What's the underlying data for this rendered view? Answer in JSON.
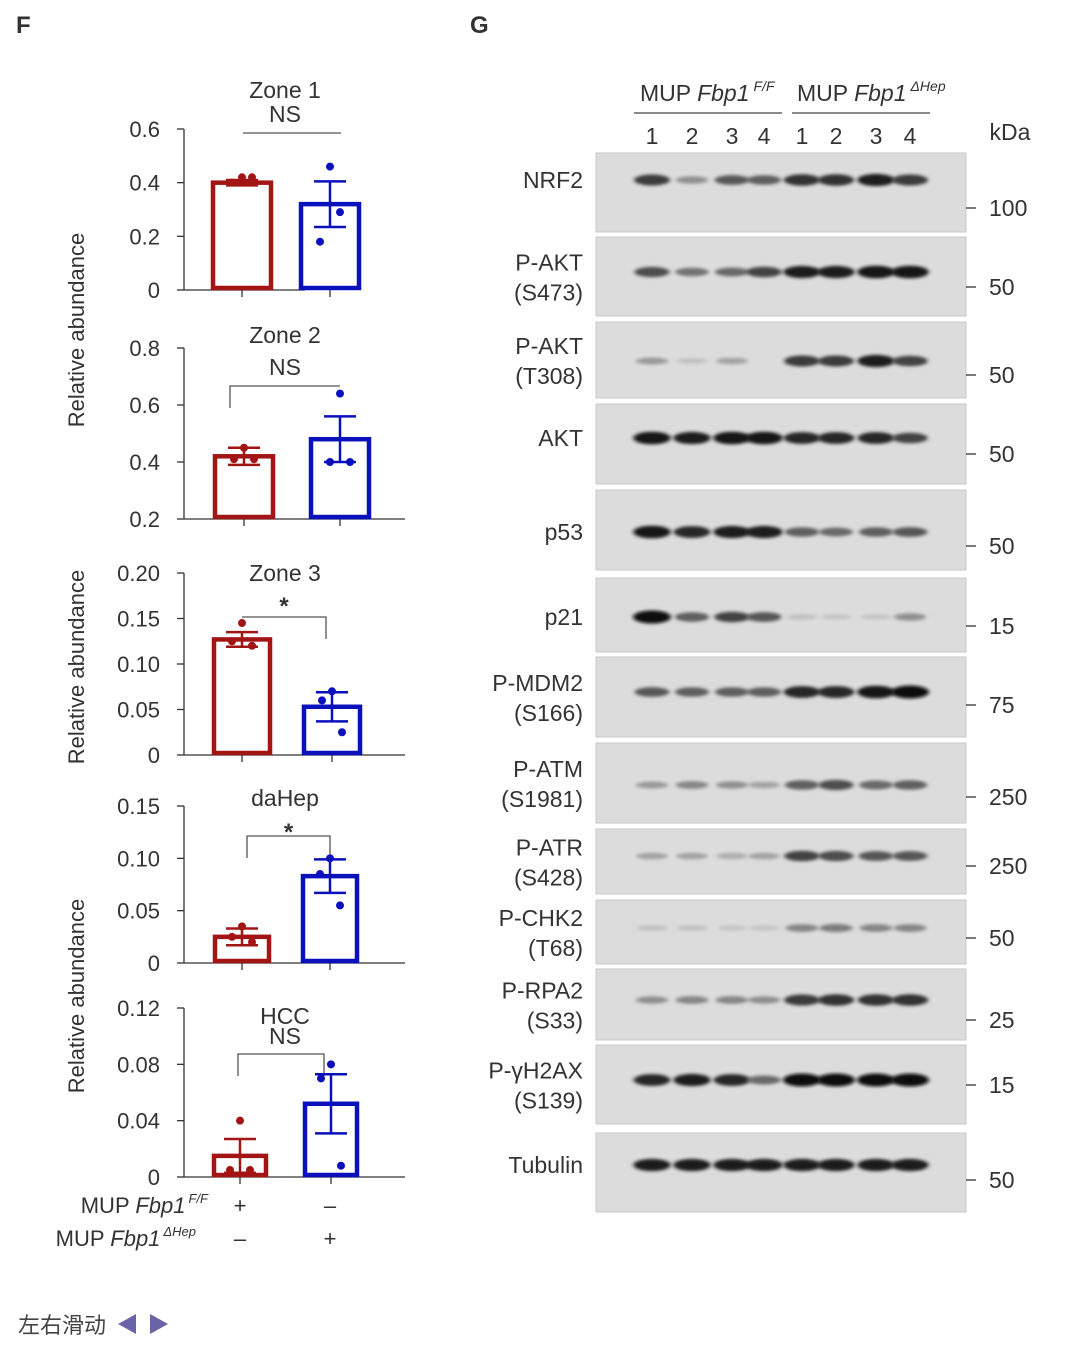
{
  "panel_f_label": "F",
  "panel_g_label": "G",
  "chart_data": [
    {
      "type": "bar",
      "title": "Zone 1",
      "significance": "NS",
      "ylabel": "Relative abundance",
      "ylim": [
        0,
        0.6
      ],
      "yticks": [
        "0",
        "0.2",
        "0.4",
        "0.6"
      ],
      "categories": [
        "MUP Fbp1 F/F",
        "MUP Fbp1 ΔHep"
      ],
      "values": [
        0.4,
        0.32
      ],
      "errors": [
        0.01,
        0.085
      ],
      "points": [
        [
          0.42,
          0.4,
          0.42
        ],
        [
          0.46,
          0.18,
          0.29
        ]
      ],
      "colors": [
        "#a31515",
        "#0b10bd"
      ]
    },
    {
      "type": "bar",
      "title": "Zone 2",
      "significance": "NS",
      "ylabel": "",
      "ylim": [
        0.2,
        0.8
      ],
      "yticks": [
        "0.2",
        "0.4",
        "0.6",
        "0.8"
      ],
      "categories": [
        "MUP Fbp1 F/F",
        "MUP Fbp1 ΔHep"
      ],
      "values": [
        0.42,
        0.48
      ],
      "errors": [
        0.03,
        0.08
      ],
      "points": [
        [
          0.45,
          0.41,
          0.41
        ],
        [
          0.64,
          0.4,
          0.4
        ]
      ],
      "colors": [
        "#a31515",
        "#0b10bd"
      ]
    },
    {
      "type": "bar",
      "title": "Zone 3",
      "significance": "*",
      "ylabel": "Relative abundance",
      "ylim": [
        0,
        0.2
      ],
      "yticks": [
        "0",
        "0.05",
        "0.10",
        "0.15",
        "0.20"
      ],
      "categories": [
        "MUP Fbp1 F/F",
        "MUP Fbp1 ΔHep"
      ],
      "values": [
        0.127,
        0.053
      ],
      "errors": [
        0.008,
        0.016
      ],
      "points": [
        [
          0.145,
          0.125,
          0.12
        ],
        [
          0.07,
          0.06,
          0.025
        ]
      ],
      "colors": [
        "#a31515",
        "#0b10bd"
      ]
    },
    {
      "type": "bar",
      "title": "daHep",
      "significance": "*",
      "ylabel": "Relative abundance",
      "ylim": [
        0,
        0.15
      ],
      "yticks": [
        "0",
        "0.05",
        "0.10",
        "0.15"
      ],
      "categories": [
        "MUP Fbp1 F/F",
        "MUP Fbp1 ΔHep"
      ],
      "values": [
        0.025,
        0.083
      ],
      "errors": [
        0.008,
        0.016
      ],
      "points": [
        [
          0.035,
          0.025,
          0.02
        ],
        [
          0.1,
          0.085,
          0.055
        ]
      ],
      "colors": [
        "#a31515",
        "#0b10bd"
      ]
    },
    {
      "type": "bar",
      "title": "HCC",
      "significance": "NS",
      "ylabel": "",
      "ylim": [
        0,
        0.12
      ],
      "yticks": [
        "0",
        "0.04",
        "0.08",
        "0.12"
      ],
      "categories": [
        "MUP Fbp1 F/F",
        "MUP Fbp1 ΔHep"
      ],
      "values": [
        0.015,
        0.052
      ],
      "errors": [
        0.012,
        0.021
      ],
      "points": [
        [
          0.04,
          0.005,
          0.005
        ],
        [
          0.08,
          0.07,
          0.008
        ]
      ],
      "colors": [
        "#a31515",
        "#0b10bd"
      ]
    }
  ],
  "genotype_rows": [
    {
      "prefix": "MUP ",
      "gene": "Fbp1",
      "sup": "F/F",
      "marks": [
        "+",
        "–"
      ]
    },
    {
      "prefix": "MUP ",
      "gene": "Fbp1",
      "sup": "ΔHep",
      "marks": [
        "–",
        "+"
      ]
    }
  ],
  "blot": {
    "groups": [
      {
        "prefix": "MUP ",
        "gene": "Fbp1",
        "sup": "F/F"
      },
      {
        "prefix": "MUP ",
        "gene": "Fbp1",
        "sup": "ΔHep"
      }
    ],
    "lane_numbers": [
      "1",
      "2",
      "3",
      "4",
      "1",
      "2",
      "3",
      "4"
    ],
    "kda_header": "kDa",
    "rows": [
      {
        "label": [
          "NRF2"
        ],
        "kda": "100",
        "intensity": [
          0.75,
          0.3,
          0.6,
          0.55,
          0.8,
          0.8,
          0.9,
          0.75
        ]
      },
      {
        "label": [
          "P-AKT",
          "(S473)"
        ],
        "kda": "50",
        "intensity": [
          0.65,
          0.45,
          0.5,
          0.7,
          0.9,
          0.9,
          0.95,
          0.95
        ]
      },
      {
        "label": [
          "P-AKT",
          "(T308)"
        ],
        "kda": "50",
        "intensity": [
          0.25,
          0.05,
          0.2,
          0.0,
          0.75,
          0.75,
          0.9,
          0.7
        ]
      },
      {
        "label": [
          "AKT"
        ],
        "kda": "50",
        "intensity": [
          0.95,
          0.9,
          0.95,
          0.95,
          0.85,
          0.85,
          0.85,
          0.7
        ]
      },
      {
        "label": [
          "p53"
        ],
        "kda": "50",
        "intensity": [
          0.95,
          0.85,
          0.9,
          0.9,
          0.55,
          0.5,
          0.55,
          0.6
        ]
      },
      {
        "label": [
          "p21"
        ],
        "kda": "15",
        "intensity": [
          1.0,
          0.55,
          0.7,
          0.6,
          0.05,
          0.02,
          0.02,
          0.3
        ]
      },
      {
        "label": [
          "P-MDM2",
          "(S166)"
        ],
        "kda": "75",
        "intensity": [
          0.6,
          0.55,
          0.55,
          0.55,
          0.85,
          0.85,
          0.95,
          1.0
        ]
      },
      {
        "label": [
          "P-ATM",
          "(S1981)"
        ],
        "kda": "250",
        "intensity": [
          0.25,
          0.35,
          0.3,
          0.2,
          0.55,
          0.65,
          0.5,
          0.55
        ]
      },
      {
        "label": [
          "P-ATR",
          "(S428)"
        ],
        "kda": "250",
        "intensity": [
          0.2,
          0.2,
          0.15,
          0.2,
          0.7,
          0.65,
          0.6,
          0.6
        ]
      },
      {
        "label": [
          "P-CHK2",
          "(T68)"
        ],
        "kda": "50",
        "intensity": [
          0.05,
          0.05,
          0.02,
          0.02,
          0.35,
          0.4,
          0.35,
          0.35
        ]
      },
      {
        "label": [
          "P-RPA2",
          "(S33)"
        ],
        "kda": "25",
        "intensity": [
          0.3,
          0.35,
          0.35,
          0.3,
          0.75,
          0.8,
          0.8,
          0.8
        ]
      },
      {
        "label": [
          "P-γH2AX",
          "(S139)"
        ],
        "kda": "15",
        "intensity": [
          0.85,
          0.9,
          0.85,
          0.5,
          1.0,
          1.0,
          1.0,
          1.0
        ]
      },
      {
        "label": [
          "Tubulin"
        ],
        "kda": "50",
        "intensity": [
          0.9,
          0.9,
          0.9,
          0.9,
          0.9,
          0.9,
          0.9,
          0.9
        ]
      }
    ]
  },
  "footer": {
    "text": "左右滑动",
    "prev_icon": "triangle-left-icon",
    "next_icon": "triangle-right-icon",
    "arrow_color": "#6a63a8"
  }
}
